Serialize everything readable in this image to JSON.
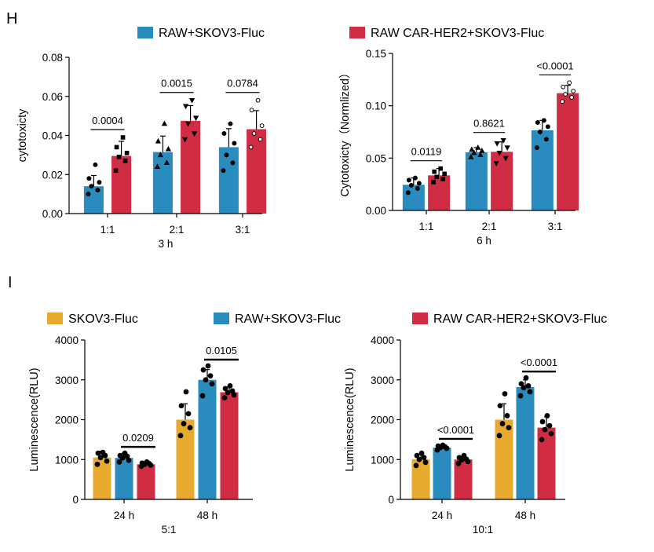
{
  "colors": {
    "skov3": "#E8AA2E",
    "raw": "#2A8BBF",
    "car": "#D02C44"
  },
  "panel_h": {
    "letter": "H",
    "legend": [
      {
        "label": "RAW+SKOV3-Fluc",
        "color": "#2A8BBF"
      },
      {
        "label": "RAW CAR-HER2+SKOV3-Fluc",
        "color": "#D02C44"
      }
    ]
  },
  "panel_i": {
    "letter": "I",
    "legend": [
      {
        "label": "SKOV3-Fluc",
        "color": "#E8AA2E"
      },
      {
        "label": "RAW+SKOV3-Fluc",
        "color": "#2A8BBF"
      },
      {
        "label": "RAW CAR-HER2+SKOV3-Fluc",
        "color": "#D02C44"
      }
    ]
  },
  "chart_data": [
    {
      "id": "h_left",
      "type": "bar",
      "ylabel": "cytotoxicty",
      "xlabel": "3 h",
      "ylim": [
        0,
        0.08
      ],
      "yticks": [
        0,
        0.02,
        0.04,
        0.06,
        0.08
      ],
      "ytick_labels": [
        "0.00",
        "0.02",
        "0.04",
        "0.06",
        "0.08"
      ],
      "categories": [
        "1:1",
        "2:1",
        "3:1"
      ],
      "series": [
        {
          "color": "#2A8BBF",
          "values": [
            0.014,
            0.0315,
            0.034
          ],
          "errors": [
            0.0055,
            0.0082,
            0.0095
          ],
          "marker": "mixed",
          "points": [
            [
              0.01,
              0.012,
              0.014,
              0.016,
              0.018,
              0.025
            ],
            [
              0.024,
              0.026,
              0.03,
              0.033,
              0.037,
              0.046
            ],
            [
              0.022,
              0.026,
              0.03,
              0.036,
              0.041,
              0.046
            ]
          ]
        },
        {
          "color": "#D02C44",
          "values": [
            0.0295,
            0.0475,
            0.0432
          ],
          "errors": [
            0.0075,
            0.0078,
            0.0095
          ],
          "marker": "mixed",
          "points": [
            [
              0.022,
              0.027,
              0.029,
              0.031,
              0.034,
              0.039
            ],
            [
              0.038,
              0.041,
              0.046,
              0.049,
              0.055,
              0.058
            ],
            [
              0.034,
              0.038,
              0.041,
              0.045,
              0.053,
              0.058
            ]
          ]
        }
      ],
      "comparisons": [
        "0.0004",
        "0.0015",
        "0.0784"
      ]
    },
    {
      "id": "h_right",
      "type": "bar",
      "ylabel": "Cytotoxicty（Normlized）",
      "xlabel": "6 h",
      "ylim": [
        0,
        0.15
      ],
      "yticks": [
        0,
        0.05,
        0.1,
        0.15
      ],
      "ytick_labels": [
        "0.00",
        "0.05",
        "0.10",
        "0.15"
      ],
      "categories": [
        "1:1",
        "2:1",
        "3:1"
      ],
      "series": [
        {
          "color": "#2A8BBF",
          "values": [
            0.0245,
            0.0555,
            0.0765
          ],
          "errors": [
            0.0065,
            0.0045,
            0.0095
          ],
          "marker": "mixed",
          "points": [
            [
              0.017,
              0.021,
              0.024,
              0.026,
              0.029,
              0.031
            ],
            [
              0.051,
              0.053,
              0.055,
              0.057,
              0.058,
              0.06
            ],
            [
              0.06,
              0.068,
              0.075,
              0.08,
              0.084,
              0.086
            ]
          ]
        },
        {
          "color": "#D02C44",
          "values": [
            0.0335,
            0.056,
            0.112
          ],
          "errors": [
            0.0065,
            0.0095,
            0.0075
          ],
          "marker": "mixed",
          "points": [
            [
              0.027,
              0.03,
              0.032,
              0.035,
              0.037,
              0.04
            ],
            [
              0.045,
              0.05,
              0.055,
              0.06,
              0.064,
              0.067
            ],
            [
              0.104,
              0.108,
              0.111,
              0.114,
              0.118,
              0.122
            ]
          ]
        }
      ],
      "comparisons": [
        "0.0119",
        "0.8621",
        "<0.0001"
      ]
    },
    {
      "id": "i_left",
      "type": "bar",
      "ylabel": "Luminescence(RLU)",
      "xlabel": "5:1",
      "ylim": [
        0,
        4000
      ],
      "yticks": [
        0,
        1000,
        2000,
        3000,
        4000
      ],
      "ytick_labels": [
        "0",
        "1000",
        "2000",
        "3000",
        "4000"
      ],
      "categories": [
        "24 h",
        "48 h"
      ],
      "series": [
        {
          "color": "#E8AA2E",
          "values": [
            1050,
            2000
          ],
          "errors": [
            160,
            400
          ],
          "marker": "dot",
          "points": [
            [
              880,
              960,
              1050,
              1100,
              1160,
              1180
            ],
            [
              1600,
              1800,
              1900,
              2150,
              2350,
              2700
            ]
          ]
        },
        {
          "color": "#2A8BBF",
          "values": [
            1040,
            3000
          ],
          "errors": [
            120,
            260
          ],
          "marker": "dot",
          "points": [
            [
              940,
              980,
              1040,
              1080,
              1100,
              1160
            ],
            [
              2600,
              2900,
              3000,
              3100,
              3250,
              3350
            ]
          ]
        },
        {
          "color": "#D02C44",
          "values": [
            880,
            2690
          ],
          "errors": [
            60,
            130
          ],
          "marker": "dot",
          "points": [
            [
              830,
              860,
              880,
              900,
              910,
              940
            ],
            [
              2550,
              2620,
              2680,
              2720,
              2780,
              2850
            ]
          ]
        }
      ],
      "comparisons": [
        "0.0209",
        "0.0105"
      ]
    },
    {
      "id": "i_right",
      "type": "bar",
      "ylabel": "Luminescence(RLU)",
      "xlabel": "10:1",
      "ylim": [
        0,
        4000
      ],
      "yticks": [
        0,
        1000,
        2000,
        3000,
        4000
      ],
      "ytick_labels": [
        "0",
        "1000",
        "2000",
        "3000",
        "4000"
      ],
      "categories": [
        "24 h",
        "48 h"
      ],
      "series": [
        {
          "color": "#E8AA2E",
          "values": [
            1010,
            2000
          ],
          "errors": [
            130,
            400
          ],
          "marker": "dot",
          "points": [
            [
              850,
              930,
              1000,
              1050,
              1100,
              1160
            ],
            [
              1600,
              1800,
              1900,
              2100,
              2350,
              2650
            ]
          ]
        },
        {
          "color": "#2A8BBF",
          "values": [
            1300,
            2820
          ],
          "errors": [
            50,
            180
          ],
          "marker": "dot",
          "points": [
            [
              1240,
              1280,
              1300,
              1320,
              1340,
              1360
            ],
            [
              2600,
              2700,
              2800,
              2850,
              2900,
              3050
            ]
          ]
        },
        {
          "color": "#D02C44",
          "values": [
            1000,
            1800
          ],
          "errors": [
            80,
            270
          ],
          "marker": "dot",
          "points": [
            [
              900,
              950,
              990,
              1010,
              1050,
              1100
            ],
            [
              1500,
              1650,
              1750,
              1850,
              1950,
              2100
            ]
          ]
        }
      ],
      "comparisons": [
        "<0.0001",
        "<0.0001"
      ]
    }
  ]
}
